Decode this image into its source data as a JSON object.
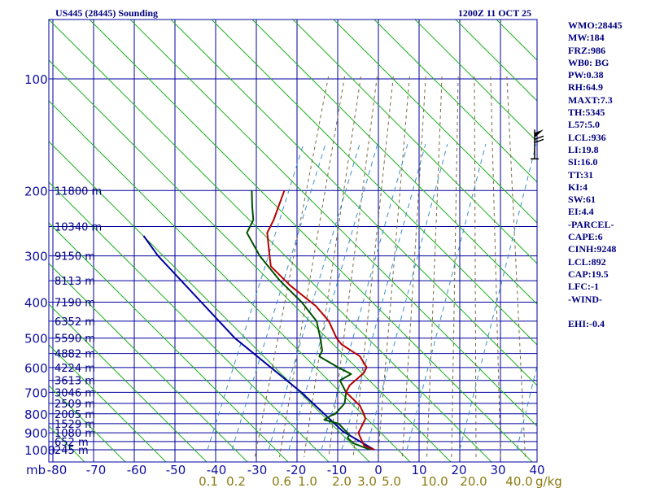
{
  "chart_data": {
    "type": "skew-t",
    "title_left": "US445 (28445) Sounding",
    "title_right": "1200Z 11 OCT 25",
    "pressure_ticks": [
      100,
      200,
      300,
      400,
      500,
      600,
      700,
      800,
      900,
      1000
    ],
    "temperature_axis_label": "mb",
    "temperature_ticks": [
      "-80",
      "-70",
      "-60",
      "-50",
      "-40",
      "-30",
      "-20",
      "-10",
      "0",
      "10",
      "20",
      "30",
      "40"
    ],
    "mixing_ratio_ticks": [
      "0.1",
      "0.2",
      "0.6",
      "1.0",
      "2.0",
      "3.0",
      "5.0",
      "10.0",
      "20.0",
      "40.0"
    ],
    "mixing_ratio_unit": "g/kg",
    "height_ticks": [
      {
        "p": 200,
        "label": "11800 m"
      },
      {
        "p": 250,
        "label": "10340 m"
      },
      {
        "p": 300,
        "label": "9150 m"
      },
      {
        "p": 350,
        "label": "8113 m"
      },
      {
        "p": 400,
        "label": "7190 m"
      },
      {
        "p": 450,
        "label": "6352 m"
      },
      {
        "p": 500,
        "label": "5590 m"
      },
      {
        "p": 550,
        "label": "4882 m"
      },
      {
        "p": 600,
        "label": "4224 m"
      },
      {
        "p": 650,
        "label": "3613 m"
      },
      {
        "p": 700,
        "label": "3046 m"
      },
      {
        "p": 750,
        "label": "2509 m"
      },
      {
        "p": 800,
        "label": "2005 m"
      },
      {
        "p": 850,
        "label": "1529 m"
      },
      {
        "p": 900,
        "label": "1080 m"
      },
      {
        "p": 950,
        "label": "652 m"
      },
      {
        "p": 1000,
        "label": "245 m"
      }
    ],
    "temperature_profile": [
      {
        "p": 1000,
        "t": -1
      },
      {
        "p": 975,
        "t": -4
      },
      {
        "p": 950,
        "t": -5
      },
      {
        "p": 925,
        "t": -6
      },
      {
        "p": 900,
        "t": -7
      },
      {
        "p": 880,
        "t": -7
      },
      {
        "p": 850,
        "t": -7
      },
      {
        "p": 825,
        "t": -7
      },
      {
        "p": 800,
        "t": -8
      },
      {
        "p": 760,
        "t": -10
      },
      {
        "p": 700,
        "t": -15
      },
      {
        "p": 670,
        "t": -15
      },
      {
        "p": 645,
        "t": -14
      },
      {
        "p": 620,
        "t": -13
      },
      {
        "p": 600,
        "t": -13
      },
      {
        "p": 560,
        "t": -16
      },
      {
        "p": 520,
        "t": -22
      },
      {
        "p": 500,
        "t": -24
      },
      {
        "p": 450,
        "t": -28
      },
      {
        "p": 410,
        "t": -33
      },
      {
        "p": 360,
        "t": -42
      },
      {
        "p": 320,
        "t": -49
      },
      {
        "p": 295,
        "t": -51
      },
      {
        "p": 260,
        "t": -54
      },
      {
        "p": 240,
        "t": -54
      },
      {
        "p": 200,
        "t": -55
      }
    ],
    "dewpoint_profile": [
      {
        "p": 1000,
        "t": -2
      },
      {
        "p": 960,
        "t": -7
      },
      {
        "p": 930,
        "t": -9
      },
      {
        "p": 910,
        "t": -9
      },
      {
        "p": 880,
        "t": -11
      },
      {
        "p": 850,
        "t": -13
      },
      {
        "p": 830,
        "t": -17
      },
      {
        "p": 810,
        "t": -16
      },
      {
        "p": 800,
        "t": -15
      },
      {
        "p": 750,
        "t": -14
      },
      {
        "p": 700,
        "t": -15
      },
      {
        "p": 650,
        "t": -18
      },
      {
        "p": 625,
        "t": -16
      },
      {
        "p": 600,
        "t": -20
      },
      {
        "p": 560,
        "t": -26
      },
      {
        "p": 540,
        "t": -26
      },
      {
        "p": 500,
        "t": -28
      },
      {
        "p": 450,
        "t": -31
      },
      {
        "p": 400,
        "t": -37
      },
      {
        "p": 350,
        "t": -45
      },
      {
        "p": 300,
        "t": -53
      },
      {
        "p": 260,
        "t": -59
      },
      {
        "p": 240,
        "t": -59
      },
      {
        "p": 220,
        "t": -61
      },
      {
        "p": 200,
        "t": -63
      }
    ],
    "parcel_path": [
      {
        "p": 1000,
        "t": -1
      },
      {
        "p": 892,
        "t": -11
      },
      {
        "p": 700,
        "t": -26
      },
      {
        "p": 500,
        "t": -49
      },
      {
        "p": 300,
        "t": -78
      },
      {
        "p": 265,
        "t": -84
      }
    ],
    "wind_barb": {
      "p": 150,
      "label": "wind barb"
    },
    "colors": {
      "isobar": "#0000a0",
      "isotherm": "#0000a0",
      "dry_adiabat": "#20b020",
      "moist_adiabat": "#7a6a40",
      "mixing_ratio": "#3a90c8",
      "temperature": "#b80000",
      "dewpoint": "#005000",
      "parcel": "#0000a0"
    }
  },
  "indices": [
    "WMO:28445",
    "MW:184",
    "FRZ:986",
    "WB0: BG",
    "PW:0.38",
    "RH:64.9",
    "MAXT:7.3",
    "TH:5345",
    "L57:5.0",
    "LCL:936",
    "LI:19.8",
    "SI:16.0",
    "TT:31",
    "KI:4",
    "SW:61",
    "EI:4.4",
    "-PARCEL-",
    "CAPE:6",
    "CINH:9248",
    "LCL:892",
    "CAP:19.5",
    "LFC:-1",
    "-WIND-",
    "",
    "EHI:-0.4"
  ]
}
